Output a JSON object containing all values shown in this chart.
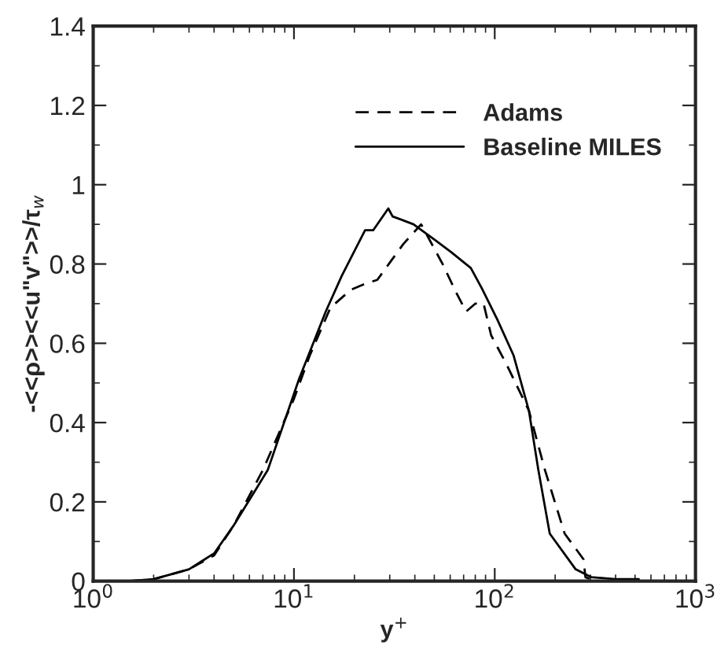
{
  "chart_data": {
    "type": "line",
    "xlabel": "y$^{+}$",
    "ylabel": "-<<ρ>><<u\"v\">>/τ$_{w}$",
    "log": "x",
    "xlim": [
      1,
      1000
    ],
    "xticks": [
      {
        "value": 1,
        "label": "10$^{0}$"
      },
      {
        "value": 10,
        "label": "10$^{1}$"
      },
      {
        "value": 100,
        "label": "10$^{2}$"
      },
      {
        "value": 1000,
        "label": "10$^{3}$"
      }
    ],
    "ylim": [
      0,
      1.4
    ],
    "yticks": [
      0,
      0.2,
      0.4,
      0.6,
      0.8,
      1,
      1.2,
      1.4
    ],
    "grid": false,
    "legend": "top right",
    "series": [
      {
        "name": "Adams",
        "color": "#000000",
        "line_style": "dashed",
        "x": [
          1.5,
          2,
          3,
          4,
          5,
          7,
          10,
          12,
          15.2,
          19.2,
          22.6,
          26,
          35,
          43,
          55,
          64,
          72,
          80,
          88,
          96,
          115,
          148,
          178,
          223,
          277,
          283,
          300
        ],
        "values": [
          0,
          0.005,
          0.03,
          0.065,
          0.14,
          0.28,
          0.46,
          0.57,
          0.69,
          0.735,
          0.75,
          0.76,
          0.85,
          0.9,
          0.8,
          0.73,
          0.68,
          0.7,
          0.7,
          0.62,
          0.545,
          0.43,
          0.28,
          0.12,
          0.055,
          0.01,
          0.005
        ]
      },
      {
        "name": "Baseline MILES",
        "color": "#000000",
        "line_style": "solid",
        "x": [
          1.5,
          2,
          3,
          4,
          5,
          7.4,
          10.6,
          14.4,
          17.3,
          22.6,
          24.8,
          29.5,
          31,
          39.4,
          50.6,
          60.6,
          76,
          86,
          103,
          124,
          148,
          165,
          188,
          253,
          303,
          400,
          522
        ],
        "values": [
          0,
          0.005,
          0.03,
          0.07,
          0.14,
          0.28,
          0.51,
          0.68,
          0.77,
          0.885,
          0.885,
          0.94,
          0.92,
          0.9,
          0.86,
          0.83,
          0.79,
          0.74,
          0.66,
          0.57,
          0.43,
          0.28,
          0.12,
          0.03,
          0.01,
          0.005,
          0.005
        ]
      }
    ]
  }
}
